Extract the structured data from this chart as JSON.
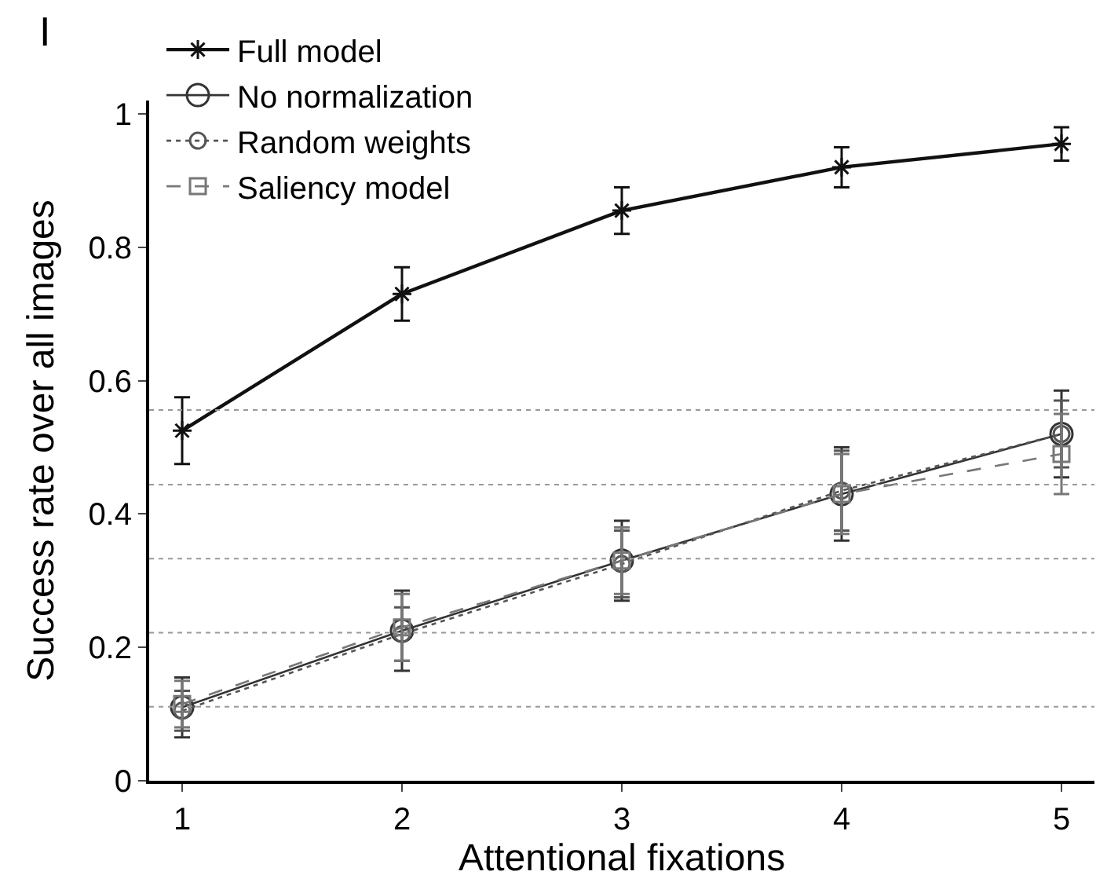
{
  "chart_data": {
    "type": "line",
    "xlabel": "Attentional fixations",
    "ylabel": "Success rate over all images",
    "x": [
      1,
      2,
      3,
      4,
      5
    ],
    "series": [
      {
        "name": "Full model",
        "color": "#111111",
        "values": [
          0.525,
          0.73,
          0.855,
          0.92,
          0.955
        ],
        "errors": [
          0.05,
          0.04,
          0.035,
          0.03,
          0.025
        ],
        "marker": "cross",
        "line_style": "solid"
      },
      {
        "name": "No normalization",
        "color": "#333333",
        "values": [
          0.11,
          0.225,
          0.33,
          0.43,
          0.52
        ],
        "errors": [
          0.045,
          0.06,
          0.06,
          0.07,
          0.065
        ],
        "marker": "circle",
        "line_style": "solid"
      },
      {
        "name": "Random weights",
        "color": "#555555",
        "values": [
          0.105,
          0.22,
          0.325,
          0.435,
          0.52
        ],
        "errors": [
          0.03,
          0.04,
          0.05,
          0.06,
          0.05
        ],
        "marker": "circle",
        "line_style": "dotted"
      },
      {
        "name": "Saliency model",
        "color": "#777777",
        "values": [
          0.115,
          0.23,
          0.33,
          0.43,
          0.49
        ],
        "errors": [
          0.035,
          0.05,
          0.05,
          0.06,
          0.06
        ],
        "marker": "square",
        "line_style": "dashed"
      }
    ],
    "xlim": [
      0.85,
      5.15
    ],
    "xticks": [
      1,
      2,
      3,
      4,
      5
    ],
    "ylim": [
      0,
      1.02
    ],
    "yticks": [
      0,
      0.2,
      0.4,
      0.6,
      0.8,
      1
    ],
    "ref_lines": [
      {
        "axis": "y",
        "value": 0.111,
        "color": "#999999",
        "line_style": "dotted"
      },
      {
        "axis": "y",
        "value": 0.222,
        "color": "#999999",
        "line_style": "dotted"
      },
      {
        "axis": "y",
        "value": 0.333,
        "color": "#999999",
        "line_style": "dotted"
      },
      {
        "axis": "y",
        "value": 0.444,
        "color": "#999999",
        "line_style": "dotted"
      },
      {
        "axis": "y",
        "value": 0.556,
        "color": "#999999",
        "line_style": "dotted"
      }
    ],
    "annotations": [
      "I"
    ],
    "legend": "top left"
  }
}
